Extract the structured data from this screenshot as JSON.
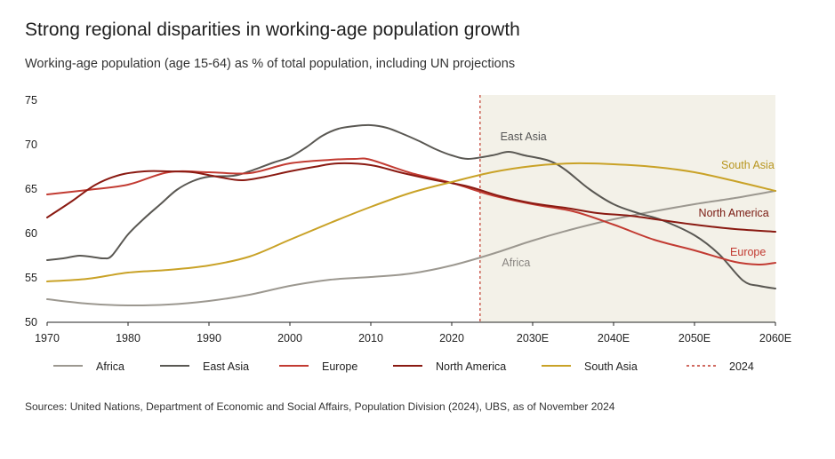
{
  "header": {
    "title": "Strong regional disparities in working-age population growth",
    "subtitle": "Working-age population (age 15-64) as % of total population, including UN projections"
  },
  "footer": {
    "source": "Sources: United Nations, Department of Economic and Social Affairs, Population Division (2024), UBS, as of November 2024"
  },
  "chart_data": {
    "type": "line",
    "x_ticks": [
      "1970",
      "1980",
      "1990",
      "2000",
      "2010",
      "2020",
      "2030E",
      "2040E",
      "2050E",
      "2060E"
    ],
    "y_ticks": [
      "50",
      "55",
      "60",
      "65",
      "70",
      "75"
    ],
    "xlim": [
      1970,
      2060
    ],
    "ylim": [
      50,
      75
    ],
    "grid": false,
    "projection_start": 2023.5,
    "projection_shading": "#f3f1e8",
    "marker": {
      "name": "2024",
      "x": 2023.5,
      "color": "#c0392b",
      "style": "dashed"
    },
    "legend_position": "bottom",
    "series": [
      {
        "name": "Africa",
        "color": "#9c9890",
        "x": [
          1970,
          1975,
          1980,
          1985,
          1990,
          1995,
          2000,
          2005,
          2010,
          2015,
          2020,
          2025,
          2030,
          2035,
          2040,
          2045,
          2050,
          2055,
          2060
        ],
        "y": [
          52.6,
          52.1,
          51.9,
          52.0,
          52.4,
          53.1,
          54.1,
          54.8,
          55.1,
          55.5,
          56.4,
          57.7,
          59.2,
          60.5,
          61.6,
          62.5,
          63.3,
          64.0,
          64.8
        ]
      },
      {
        "name": "East Asia",
        "color": "#5a5853",
        "x": [
          1970,
          1972,
          1974,
          1976,
          1977,
          1978,
          1980,
          1982,
          1984,
          1986,
          1988,
          1990,
          1993,
          1995,
          1998,
          2000,
          2002,
          2004,
          2006,
          2008,
          2010,
          2012,
          2014,
          2016,
          2018,
          2020,
          2022,
          2025,
          2027,
          2029,
          2032,
          2034,
          2037,
          2040,
          2043,
          2046,
          2050,
          2053,
          2056,
          2058,
          2060
        ],
        "y": [
          57.0,
          57.2,
          57.5,
          57.3,
          57.2,
          57.5,
          59.9,
          61.7,
          63.3,
          64.9,
          65.9,
          66.4,
          66.5,
          67.0,
          68.0,
          68.6,
          69.7,
          71.0,
          71.8,
          72.1,
          72.2,
          71.9,
          71.2,
          70.4,
          69.5,
          68.8,
          68.4,
          68.8,
          69.2,
          68.8,
          68.2,
          67.2,
          65.0,
          63.3,
          62.3,
          61.5,
          59.8,
          57.7,
          54.7,
          54.1,
          53.8
        ]
      },
      {
        "name": "Europe",
        "color": "#c23b32",
        "x": [
          1970,
          1975,
          1980,
          1985,
          1990,
          1995,
          2000,
          2005,
          2008,
          2010,
          2015,
          2020,
          2025,
          2030,
          2035,
          2040,
          2045,
          2050,
          2055,
          2058,
          2060
        ],
        "y": [
          64.4,
          64.9,
          65.5,
          66.9,
          66.9,
          66.8,
          67.9,
          68.3,
          68.4,
          68.3,
          66.8,
          65.7,
          64.3,
          63.3,
          62.5,
          61.0,
          59.3,
          58.1,
          56.8,
          56.5,
          56.7
        ]
      },
      {
        "name": "North America",
        "color": "#8a1a12",
        "x": [
          1970,
          1973,
          1976,
          1979,
          1982,
          1985,
          1988,
          1991,
          1994,
          1997,
          2000,
          2003,
          2006,
          2010,
          2014,
          2018,
          2022,
          2026,
          2030,
          2034,
          2038,
          2042,
          2046,
          2050,
          2055,
          2060
        ],
        "y": [
          61.8,
          63.6,
          65.5,
          66.6,
          67.0,
          67.0,
          66.9,
          66.4,
          66.0,
          66.4,
          67.0,
          67.5,
          67.9,
          67.7,
          66.8,
          66.0,
          65.3,
          64.2,
          63.4,
          62.9,
          62.3,
          62.0,
          61.5,
          61.0,
          60.5,
          60.2
        ]
      },
      {
        "name": "South Asia",
        "color": "#c9a227",
        "x": [
          1970,
          1975,
          1980,
          1985,
          1990,
          1995,
          2000,
          2005,
          2010,
          2015,
          2020,
          2025,
          2030,
          2035,
          2040,
          2045,
          2050,
          2055,
          2060
        ],
        "y": [
          54.6,
          54.9,
          55.6,
          55.9,
          56.4,
          57.4,
          59.3,
          61.2,
          63.0,
          64.6,
          65.8,
          66.9,
          67.6,
          67.9,
          67.8,
          67.5,
          66.9,
          65.9,
          64.8
        ]
      }
    ],
    "series_labels": [
      {
        "name": "East Asia",
        "x": 2026.0,
        "y": 70.5,
        "color": "#555555"
      },
      {
        "name": "South Asia",
        "x": 2053.3,
        "y": 67.3,
        "color": "#b8961f"
      },
      {
        "name": "North America",
        "x": 2050.5,
        "y": 61.9,
        "color": "#7a1a12"
      },
      {
        "name": "Europe",
        "x": 2054.4,
        "y": 57.5,
        "color": "#c23b32"
      },
      {
        "name": "Africa",
        "x": 2026.2,
        "y": 56.3,
        "color": "#888480"
      }
    ]
  }
}
